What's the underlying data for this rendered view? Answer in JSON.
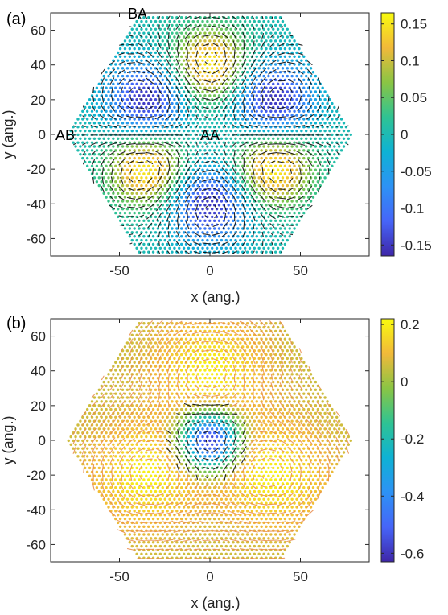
{
  "chart_data": [
    {
      "type": "heatmap",
      "panel_label": "(a)",
      "xlabel": "x (ang.)",
      "ylabel": "y (ang.)",
      "xlim": [
        -88,
        88
      ],
      "ylim": [
        -70,
        70
      ],
      "x_ticks": [
        -50,
        0,
        50
      ],
      "y_ticks": [
        60,
        40,
        20,
        0,
        -20,
        -40,
        -60
      ],
      "colorbar": {
        "colormap": "parula",
        "range": [
          -0.165,
          0.165
        ],
        "ticks": [
          0.15,
          0.1,
          0.05,
          0,
          -0.05,
          -0.1,
          -0.15
        ],
        "tick_labels": [
          "0.15",
          "0.1",
          "0.05",
          "0",
          "-0.05",
          "-0.1",
          "-0.15"
        ]
      },
      "grid": false,
      "region_labels": [
        {
          "text": "BA",
          "x": -40,
          "y": 70
        },
        {
          "text": "AB",
          "x": -80,
          "y": 0
        },
        {
          "text": "AA",
          "x": 0,
          "y": 0
        }
      ],
      "pattern": {
        "domain": "hexagonal flake, corner radius 80 ang.",
        "lobes": [
          {
            "x": 0,
            "y": 40,
            "value": 0.16
          },
          {
            "x": -35,
            "y": -20,
            "value": 0.16
          },
          {
            "x": 35,
            "y": -20,
            "value": 0.16
          },
          {
            "x": -35,
            "y": 20,
            "value": -0.16
          },
          {
            "x": 35,
            "y": 20,
            "value": -0.16
          },
          {
            "x": 0,
            "y": -40,
            "value": -0.16
          }
        ],
        "arrows": "black in-plane vectors swirling around each lobe"
      }
    },
    {
      "type": "heatmap",
      "panel_label": "(b)",
      "xlabel": "x (ang.)",
      "ylabel": "y (ang.)",
      "xlim": [
        -88,
        88
      ],
      "ylim": [
        -70,
        70
      ],
      "x_ticks": [
        -50,
        0,
        50
      ],
      "y_ticks": [
        60,
        40,
        20,
        0,
        -20,
        -40,
        -60
      ],
      "colorbar": {
        "colormap": "parula",
        "range": [
          -0.63,
          0.22
        ],
        "ticks": [
          0.2,
          0,
          -0.2,
          -0.4,
          -0.6
        ],
        "tick_labels": [
          "0.2",
          "0",
          "-0.2",
          "-0.4",
          "-0.6"
        ]
      },
      "grid": false,
      "pattern": {
        "domain": "hexagonal flake, corner radius 80 ang.",
        "background_value": 0.05,
        "features": [
          {
            "x": 0,
            "y": 0,
            "value": -0.62,
            "width": 11
          },
          {
            "x": 0,
            "y": 40,
            "value": 0.2,
            "width": 20
          },
          {
            "x": -35,
            "y": -20,
            "value": 0.2,
            "width": 20
          },
          {
            "x": 35,
            "y": -20,
            "value": 0.2,
            "width": 20
          }
        ],
        "arrows": "black in-plane vectors circulating around the central minimum, orange arrows elsewhere"
      }
    }
  ]
}
